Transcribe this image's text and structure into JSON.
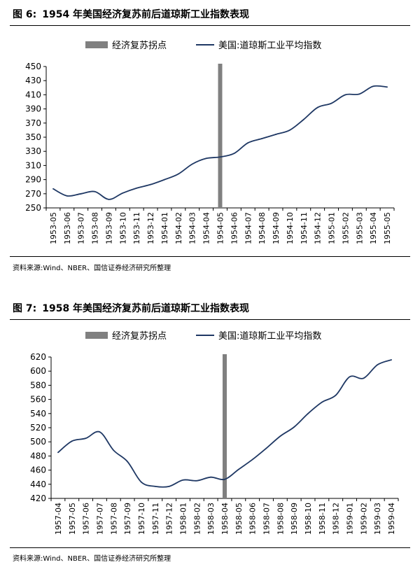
{
  "colors": {
    "marker": "#808080",
    "line": "#1f3864",
    "axis": "#000000",
    "rule": "#000000"
  },
  "figures": [
    {
      "label": "图 6:",
      "title": "1954 年美国经济复苏前后道琼斯工业指数表现",
      "source": "资料来源:Wind、NBER、国信证券经济研究所整理",
      "chart_data": {
        "type": "line",
        "title": "1954 年美国经济复苏前后道琼斯工业指数表现",
        "legend": [
          "经济复苏拐点",
          "美国:道琼斯工业平均指数"
        ],
        "legend_position": "top",
        "x": [
          "1953-05",
          "1953-06",
          "1953-07",
          "1953-08",
          "1953-09",
          "1953-10",
          "1953-11",
          "1953-12",
          "1954-01",
          "1954-02",
          "1954-03",
          "1954-04",
          "1954-05",
          "1954-06",
          "1954-07",
          "1954-08",
          "1954-09",
          "1954-10",
          "1954-11",
          "1954-12",
          "1955-01",
          "1955-02",
          "1955-03",
          "1955-04",
          "1955-05"
        ],
        "series": [
          {
            "name": "美国:道琼斯工业平均指数",
            "values": [
              277,
              267,
              270,
              273,
              262,
              271,
              278,
              283,
              290,
              298,
              312,
              320,
              322,
              327,
              342,
              348,
              354,
              360,
              375,
              392,
              398,
              410,
              411,
              422,
              421
            ]
          }
        ],
        "vertical_marker": {
          "name": "经济复苏拐点",
          "x": "1954-05"
        },
        "ylim": [
          250,
          450
        ],
        "yticks": [
          250,
          270,
          290,
          310,
          330,
          350,
          370,
          390,
          410,
          430,
          450
        ],
        "grid": false
      }
    },
    {
      "label": "图 7:",
      "title": "1958 年美国经济复苏前后道琼斯工业指数表现",
      "source": "资料来源:Wind、NBER、国信证券经济研究所整理",
      "chart_data": {
        "type": "line",
        "title": "1958 年美国经济复苏前后道琼斯工业指数表现",
        "legend": [
          "经济复苏拐点",
          "美国:道琼斯工业平均指数"
        ],
        "legend_position": "top",
        "x": [
          "1957-04",
          "1957-05",
          "1957-06",
          "1957-07",
          "1957-08",
          "1957-09",
          "1957-10",
          "1957-11",
          "1957-12",
          "1958-01",
          "1958-02",
          "1958-03",
          "1958-04",
          "1958-05",
          "1958-06",
          "1958-07",
          "1958-08",
          "1958-09",
          "1958-10",
          "1958-11",
          "1958-12",
          "1959-01",
          "1959-02",
          "1959-03",
          "1959-04"
        ],
        "series": [
          {
            "name": "美国:道琼斯工业平均指数",
            "values": [
              485,
              501,
              505,
              514,
              488,
              472,
              443,
              437,
              437,
              446,
              445,
              450,
              447,
              461,
              475,
              491,
              508,
              521,
              540,
              556,
              566,
              592,
              590,
              609,
              616
            ]
          }
        ],
        "vertical_marker": {
          "name": "经济复苏拐点",
          "x": "1958-04"
        },
        "ylim": [
          420,
          620
        ],
        "yticks": [
          420,
          440,
          460,
          480,
          500,
          520,
          540,
          560,
          580,
          600,
          620
        ],
        "grid": false
      }
    }
  ]
}
